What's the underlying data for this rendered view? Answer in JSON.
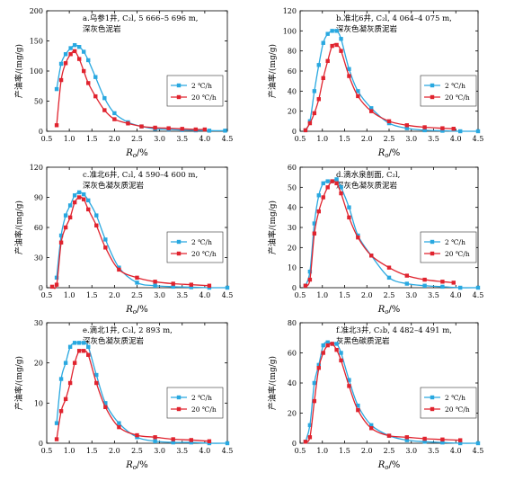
{
  "colors": {
    "blue": "#29a8e0",
    "red": "#e0232e",
    "axis": "#000000",
    "legend_border": "#333333"
  },
  "legend_labels": [
    "2 ℃/h",
    "20 ℃/h"
  ],
  "chart_data": [
    {
      "type": "line",
      "title_line1": "a.乌参1井, C₂l, 5 666–5 696 m,",
      "title_line2": "深灰色泥岩",
      "ylabel": "产油率/(mg/g)",
      "xlabel": "Ro/%",
      "xlim": [
        0.5,
        4.5
      ],
      "ylim": [
        0,
        200
      ],
      "xticks": [
        "0.5",
        "1.0",
        "1.5",
        "2.0",
        "2.5",
        "3.0",
        "3.5",
        "4.0",
        "4.5"
      ],
      "yticks": [
        "0",
        "50",
        "100",
        "150",
        "200"
      ],
      "grid": false,
      "legend_position": "center-right",
      "series": [
        {
          "name": "2 ℃/h",
          "color": "blue",
          "x": [
            0.72,
            0.82,
            0.92,
            1.03,
            1.12,
            1.22,
            1.32,
            1.42,
            1.58,
            1.78,
            2.0,
            2.3,
            2.6,
            2.9,
            3.2,
            3.5,
            3.8,
            4.1,
            4.45
          ],
          "y": [
            70,
            112,
            128,
            138,
            143,
            140,
            132,
            118,
            90,
            55,
            30,
            15,
            8,
            4,
            3,
            2,
            1.5,
            1,
            1
          ]
        },
        {
          "name": "20 ℃/h",
          "color": "red",
          "x": [
            0.72,
            0.82,
            0.92,
            1.03,
            1.12,
            1.22,
            1.32,
            1.42,
            1.58,
            1.78,
            2.0,
            2.3,
            2.6,
            2.9,
            3.2,
            3.5,
            3.8,
            4.0
          ],
          "y": [
            10,
            85,
            113,
            128,
            133,
            120,
            100,
            80,
            58,
            35,
            20,
            13,
            8,
            6,
            5,
            4,
            3,
            3
          ]
        }
      ]
    },
    {
      "type": "line",
      "title_line1": "b.准北6井, C₂l, 4 064–4 075 m,",
      "title_line2": "深灰色凝灰质泥岩",
      "ylabel": "产油率/(mg/g)",
      "xlabel": "Ro/%",
      "xlim": [
        0.5,
        4.5
      ],
      "ylim": [
        0,
        120
      ],
      "xticks": [
        "0.5",
        "1.0",
        "1.5",
        "2.0",
        "2.5",
        "3.0",
        "3.5",
        "4.0",
        "4.5"
      ],
      "yticks": [
        "0",
        "20",
        "40",
        "60",
        "80",
        "100",
        "120"
      ],
      "grid": false,
      "legend_position": "center-right",
      "series": [
        {
          "name": "2 ℃/h",
          "color": "blue",
          "x": [
            0.62,
            0.72,
            0.82,
            0.92,
            1.02,
            1.12,
            1.22,
            1.32,
            1.42,
            1.6,
            1.8,
            2.1,
            2.5,
            2.9,
            3.3,
            3.7,
            4.1,
            4.5
          ],
          "y": [
            1,
            10,
            40,
            66,
            88,
            97,
            100,
            100,
            92,
            62,
            40,
            23,
            8,
            3,
            1,
            0.5,
            0,
            0
          ]
        },
        {
          "name": "20 ℃/h",
          "color": "red",
          "x": [
            0.62,
            0.72,
            0.82,
            0.92,
            1.02,
            1.12,
            1.22,
            1.32,
            1.42,
            1.6,
            1.8,
            2.1,
            2.5,
            2.9,
            3.3,
            3.7,
            3.95
          ],
          "y": [
            1,
            8,
            18,
            32,
            53,
            70,
            85,
            86,
            80,
            55,
            35,
            20,
            10,
            6,
            4,
            3,
            2.5
          ]
        }
      ]
    },
    {
      "type": "line",
      "title_line1": "c.准北6井, C₂l, 4 590–4 600 m,",
      "title_line2": "深灰色凝灰质泥岩",
      "ylabel": "产油率/(mg/g)",
      "xlabel": "Ro/%",
      "xlim": [
        0.5,
        4.5
      ],
      "ylim": [
        0,
        120
      ],
      "xticks": [
        "0.5",
        "1.0",
        "1.5",
        "2.0",
        "2.5",
        "3.0",
        "3.5",
        "4.0",
        "4.5"
      ],
      "yticks": [
        "0",
        "30",
        "60",
        "90",
        "120"
      ],
      "grid": false,
      "legend_position": "center-right",
      "series": [
        {
          "name": "2 ℃/h",
          "color": "blue",
          "x": [
            0.72,
            0.82,
            0.92,
            1.02,
            1.12,
            1.22,
            1.32,
            1.42,
            1.6,
            1.8,
            2.1,
            2.5,
            2.9,
            3.3,
            3.7,
            4.1,
            4.5
          ],
          "y": [
            10,
            52,
            72,
            82,
            92,
            95,
            93,
            87,
            72,
            48,
            20,
            5,
            2,
            1,
            0.5,
            0,
            0
          ]
        },
        {
          "name": "20 ℃/h",
          "color": "red",
          "x": [
            0.62,
            0.72,
            0.82,
            0.92,
            1.02,
            1.12,
            1.22,
            1.32,
            1.42,
            1.6,
            1.8,
            2.1,
            2.5,
            2.9,
            3.3,
            3.7,
            4.1
          ],
          "y": [
            1,
            3,
            45,
            60,
            70,
            85,
            90,
            88,
            78,
            62,
            40,
            18,
            10,
            6,
            4,
            3,
            2
          ]
        }
      ]
    },
    {
      "type": "line",
      "title_line1": "d.滴水泉剖面, C₂l,",
      "title_line2": "深灰色凝灰质泥岩",
      "ylabel": "产油率/(mg/g)",
      "xlabel": "Ro/%",
      "xlim": [
        0.5,
        4.5
      ],
      "ylim": [
        0,
        60
      ],
      "xticks": [
        "0.5",
        "1.0",
        "1.5",
        "2.0",
        "2.5",
        "3.0",
        "3.5",
        "4.0",
        "4.5"
      ],
      "yticks": [
        "0",
        "10",
        "20",
        "30",
        "40",
        "50",
        "60"
      ],
      "grid": false,
      "legend_position": "center-right",
      "series": [
        {
          "name": "2 ℃/h",
          "color": "blue",
          "x": [
            0.62,
            0.72,
            0.82,
            0.92,
            1.02,
            1.12,
            1.22,
            1.32,
            1.42,
            1.6,
            1.8,
            2.1,
            2.5,
            2.9,
            3.3,
            3.7,
            4.1,
            4.5
          ],
          "y": [
            1,
            8,
            32,
            46,
            52,
            53,
            53,
            54,
            50,
            40,
            26,
            16,
            5,
            2,
            1,
            0.5,
            0,
            0
          ]
        },
        {
          "name": "20 ℃/h",
          "color": "red",
          "x": [
            0.62,
            0.72,
            0.82,
            0.92,
            1.02,
            1.12,
            1.22,
            1.32,
            1.42,
            1.6,
            1.8,
            2.1,
            2.5,
            2.9,
            3.3,
            3.7,
            3.95
          ],
          "y": [
            1,
            4,
            27,
            38,
            45,
            50,
            53,
            52,
            47,
            35,
            25,
            16,
            10,
            6,
            4,
            3,
            2.5
          ]
        }
      ]
    },
    {
      "type": "line",
      "title_line1": "e.滴北1井, C₂l, 2 893 m,",
      "title_line2": "深灰色凝灰质泥岩",
      "ylabel": "产油率/(mg/g)",
      "xlabel": "Ro/%",
      "xlim": [
        0.5,
        4.5
      ],
      "ylim": [
        0,
        30
      ],
      "xticks": [
        "0.5",
        "1.0",
        "1.5",
        "2.0",
        "2.5",
        "3.0",
        "3.5",
        "4.0",
        "4.5"
      ],
      "yticks": [
        "0",
        "10",
        "20",
        "30"
      ],
      "grid": false,
      "legend_position": "center-right",
      "series": [
        {
          "name": "2 ℃/h",
          "color": "blue",
          "x": [
            0.72,
            0.82,
            0.92,
            1.02,
            1.12,
            1.22,
            1.32,
            1.42,
            1.6,
            1.8,
            2.1,
            2.5,
            2.9,
            3.3,
            3.7,
            4.1,
            4.5
          ],
          "y": [
            5,
            16,
            20,
            24,
            25,
            25,
            25,
            24,
            17,
            10,
            5,
            1.5,
            0.5,
            0.2,
            0.2,
            0,
            0
          ]
        },
        {
          "name": "20 ℃/h",
          "color": "red",
          "x": [
            0.72,
            0.82,
            0.92,
            1.02,
            1.12,
            1.22,
            1.32,
            1.42,
            1.6,
            1.8,
            2.1,
            2.5,
            2.9,
            3.3,
            3.7,
            4.1
          ],
          "y": [
            1,
            8,
            11,
            15,
            20,
            23,
            23,
            22,
            15,
            9,
            4,
            2,
            1.5,
            1,
            0.8,
            0.5
          ]
        }
      ]
    },
    {
      "type": "line",
      "title_line1": "f.准北3井, C₂b, 4 482–4 491 m,",
      "title_line2": "灰黑色碳质泥岩",
      "ylabel": "产油率/(mg/g)",
      "xlabel": "Ro/%",
      "xlim": [
        0.5,
        4.5
      ],
      "ylim": [
        0,
        80
      ],
      "xticks": [
        "0.5",
        "1.0",
        "1.5",
        "2.0",
        "2.5",
        "3.0",
        "3.5",
        "4.0",
        "4.5"
      ],
      "yticks": [
        "0",
        "20",
        "40",
        "60",
        "80"
      ],
      "grid": false,
      "legend_position": "center-right",
      "series": [
        {
          "name": "2 ℃/h",
          "color": "blue",
          "x": [
            0.62,
            0.72,
            0.82,
            0.92,
            1.02,
            1.12,
            1.22,
            1.32,
            1.42,
            1.6,
            1.8,
            2.1,
            2.5,
            2.9,
            3.3,
            3.7,
            4.1,
            4.5
          ],
          "y": [
            1,
            12,
            40,
            52,
            65,
            67,
            66,
            66,
            60,
            42,
            25,
            12,
            5,
            2,
            1,
            0.5,
            0,
            0
          ]
        },
        {
          "name": "20 ℃/h",
          "color": "red",
          "x": [
            0.62,
            0.72,
            0.82,
            0.92,
            1.02,
            1.12,
            1.22,
            1.32,
            1.42,
            1.6,
            1.8,
            2.1,
            2.5,
            2.9,
            3.3,
            3.7,
            4.1
          ],
          "y": [
            1,
            4,
            28,
            50,
            60,
            65,
            66,
            62,
            55,
            38,
            22,
            10,
            5,
            4,
            3,
            2.5,
            2
          ]
        }
      ]
    }
  ]
}
